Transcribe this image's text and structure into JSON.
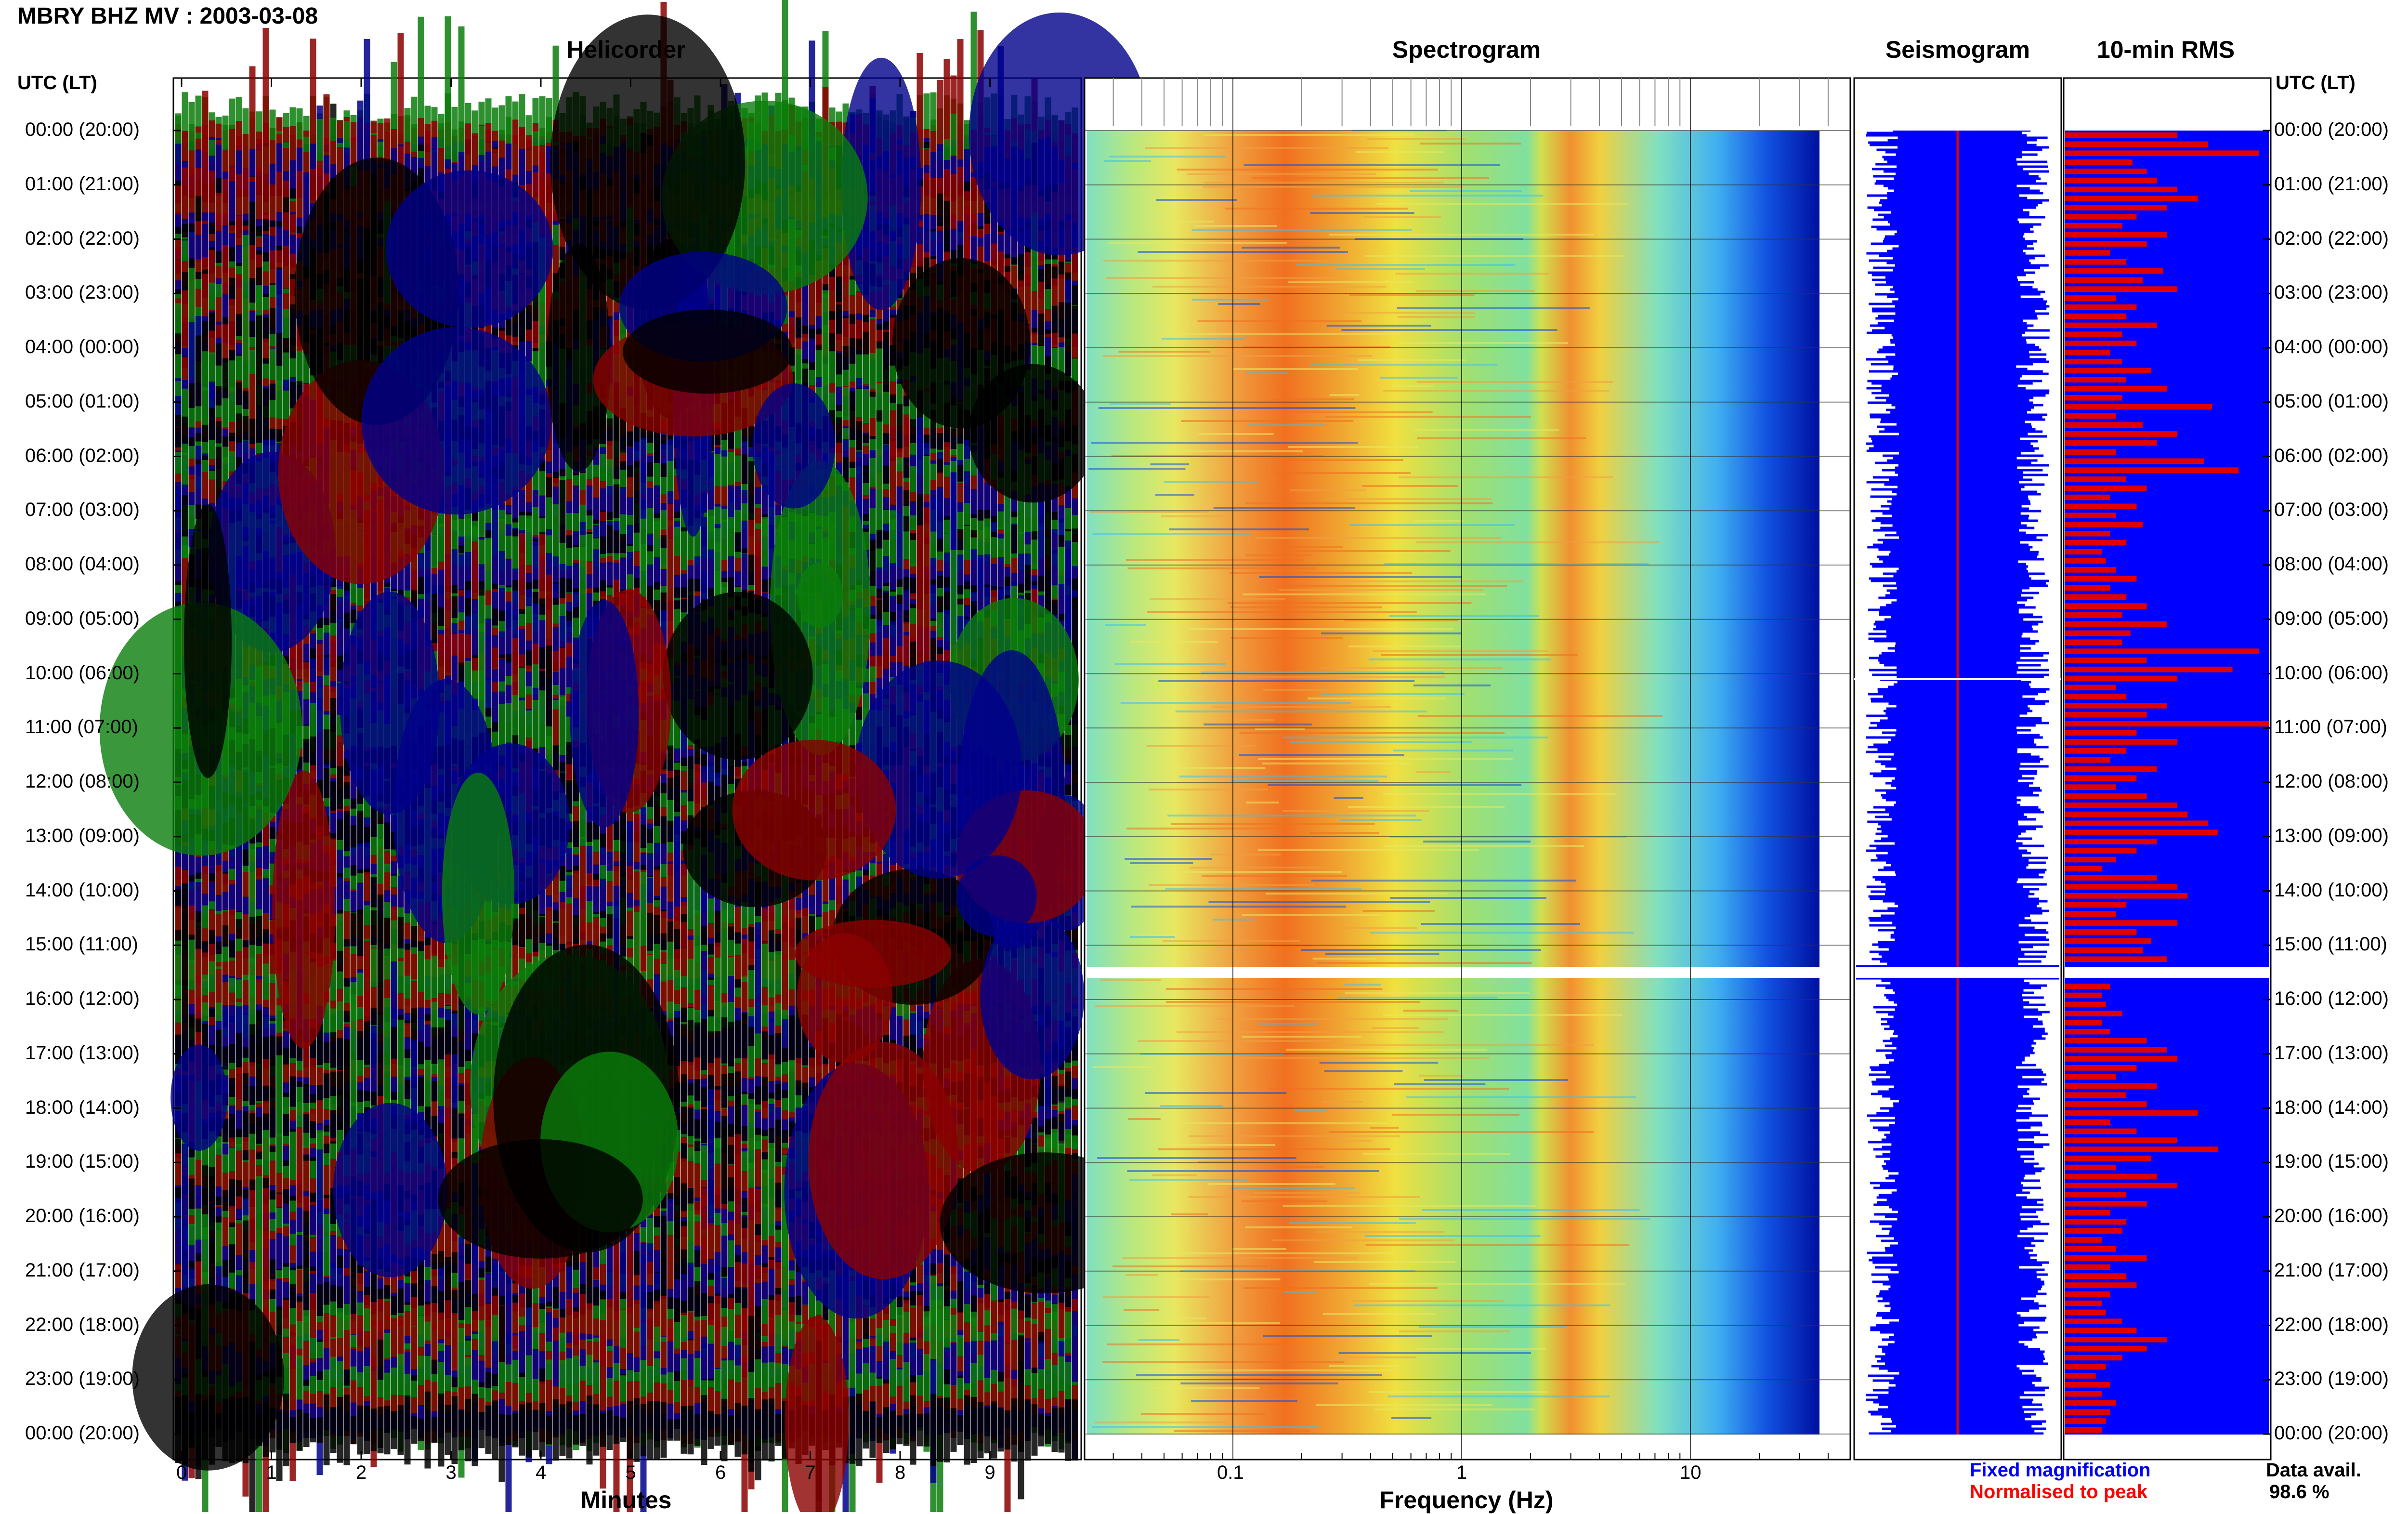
{
  "figure_title": "MBRY BHZ MV : 2003-03-08",
  "panels": {
    "helicorder": "Helicorder",
    "spectrogram": "Spectrogram",
    "seismogram": "Seismogram",
    "rms": "10-min RMS"
  },
  "axis_header_left": "UTC (LT)",
  "axis_header_right": "UTC (LT)",
  "xlabels": {
    "helicorder": "Minutes",
    "spectrogram": "Frequency (Hz)"
  },
  "legend": {
    "fixed": "Fixed magnification",
    "normalised": "Normalised to peak"
  },
  "data_avail": {
    "label": "Data avail.",
    "value": "98.6 %"
  },
  "colors": {
    "trace_green": "#0a7d0a",
    "trace_red": "#8b0000",
    "trace_blue": "#00008b",
    "trace_black": "#000000",
    "seismo_fill": "#0000ff",
    "rms_bar": "#e00000",
    "rms_bg": "#0000ff"
  },
  "chart_data": [
    {
      "type": "line",
      "panel": "helicorder",
      "title": "Helicorder",
      "xlabel": "Minutes",
      "x_ticks": [
        "0",
        "1",
        "2",
        "3",
        "4",
        "5",
        "6",
        "7",
        "8",
        "9"
      ],
      "xlim": [
        0,
        10
      ],
      "y_ticks": [
        "00:00 (20:00)",
        "01:00 (21:00)",
        "02:00 (22:00)",
        "03:00 (23:00)",
        "04:00 (00:00)",
        "05:00 (01:00)",
        "06:00 (02:00)",
        "07:00 (03:00)",
        "08:00 (04:00)",
        "09:00 (05:00)",
        "10:00 (06:00)",
        "11:00 (07:00)",
        "12:00 (08:00)",
        "13:00 (09:00)",
        "14:00 (10:00)",
        "15:00 (11:00)",
        "16:00 (12:00)",
        "17:00 (13:00)",
        "18:00 (14:00)",
        "19:00 (15:00)",
        "20:00 (16:00)",
        "21:00 (17:00)",
        "22:00 (18:00)",
        "23:00 (19:00)",
        "00:00 (20:00)"
      ],
      "series_colors": [
        "green",
        "red",
        "blue",
        "black"
      ]
    },
    {
      "type": "heatmap",
      "panel": "spectrogram",
      "title": "Spectrogram",
      "xlabel": "Frequency (Hz)",
      "x_scale": "log",
      "x_ticks": [
        "0.1",
        "1",
        "10"
      ],
      "xlim": [
        0.02,
        50
      ],
      "gap_hours": [
        15.4,
        15.6
      ]
    },
    {
      "type": "area",
      "panel": "seismogram",
      "title": "Seismogram",
      "gap_hours": [
        15.4,
        15.6
      ]
    },
    {
      "type": "bar",
      "panel": "rms",
      "title": "10-min RMS",
      "orientation": "horizontal",
      "values": [
        0.55,
        0.7,
        0.95,
        0.33,
        0.4,
        0.45,
        0.55,
        0.65,
        0.5,
        0.35,
        0.28,
        0.5,
        0.4,
        0.22,
        0.3,
        0.48,
        0.38,
        0.55,
        0.25,
        0.35,
        0.3,
        0.45,
        0.28,
        0.35,
        0.22,
        0.28,
        0.42,
        0.3,
        0.5,
        0.28,
        0.72,
        0.25,
        0.38,
        0.55,
        0.45,
        0.25,
        0.68,
        0.85,
        0.3,
        0.4,
        0.22,
        0.35,
        0.25,
        0.38,
        0.22,
        0.3,
        0.18,
        0.2,
        0.25,
        0.35,
        0.22,
        0.3,
        0.4,
        0.28,
        0.5,
        0.32,
        0.28,
        0.95,
        0.4,
        0.82,
        0.55,
        0.25,
        0.3,
        0.5,
        0.4,
        1.0,
        0.35,
        0.55,
        0.3,
        0.22,
        0.45,
        0.35,
        0.25,
        0.4,
        0.55,
        0.6,
        0.7,
        0.75,
        0.45,
        0.35,
        0.25,
        0.18,
        0.45,
        0.55,
        0.6,
        0.3,
        0.25,
        0.55,
        0.35,
        0.42,
        0.38,
        0.5,
        0.55,
        0.2,
        0.22,
        0.18,
        0.2,
        0.28,
        0.18,
        0.22,
        0.4,
        0.5,
        0.55,
        0.35,
        0.25,
        0.45,
        0.3,
        0.4,
        0.65,
        0.22,
        0.35,
        0.55,
        0.75,
        0.42,
        0.25,
        0.45,
        0.55,
        0.3,
        0.4,
        0.22,
        0.3,
        0.28,
        0.18,
        0.25,
        0.4,
        0.22,
        0.3,
        0.35,
        0.22,
        0.18,
        0.2,
        0.28,
        0.35,
        0.5,
        0.4,
        0.28,
        0.2,
        0.15,
        0.22,
        0.18,
        0.25,
        0.22,
        0.2,
        0.18
      ]
    }
  ]
}
